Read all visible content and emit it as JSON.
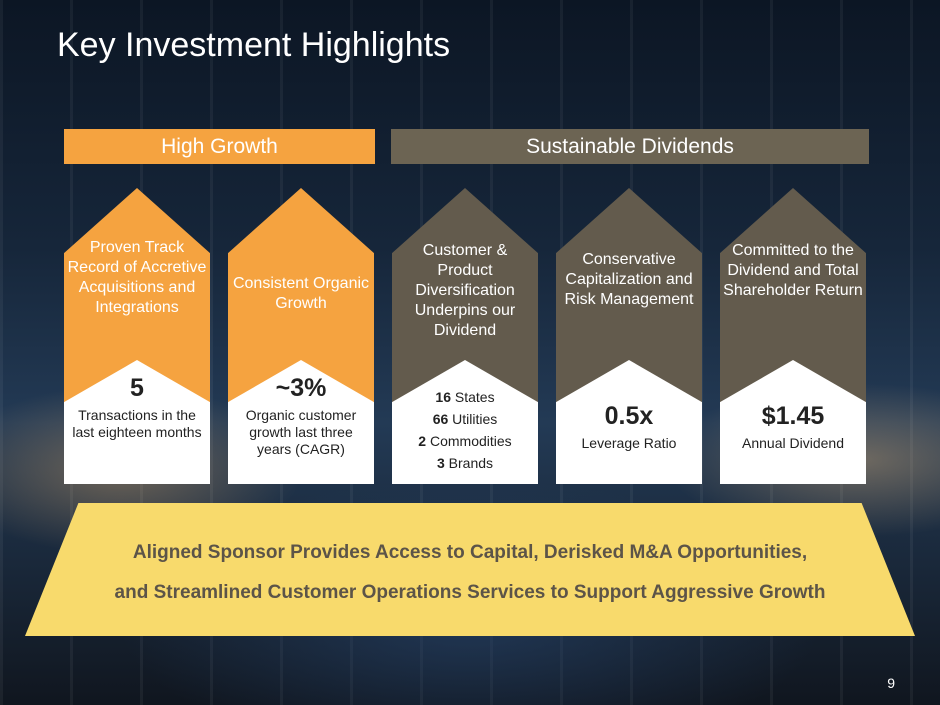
{
  "title": "Key Investment Highlights",
  "banners": {
    "growth": "High Growth",
    "dividends": "Sustainable Dividends"
  },
  "columns": [
    {
      "headline": "Proven Track Record of Accretive Acquisitions and Integrations",
      "stat": "5",
      "stat_label": "Transactions in the last eighteen months",
      "color": "#f5a340"
    },
    {
      "headline": "Consistent Organic Growth",
      "stat": "~3%",
      "stat_label": "Organic customer growth last three years (CAGR)",
      "color": "#f5a340"
    },
    {
      "headline": "Customer & Product Diversification Underpins our Dividend",
      "stats": [
        {
          "value": "16",
          "label": "States"
        },
        {
          "value": "66",
          "label": "Utilities"
        },
        {
          "value": "2",
          "label": "Commodities"
        },
        {
          "value": "3",
          "label": "Brands"
        }
      ],
      "color": "#635b4d"
    },
    {
      "headline": "Conservative Capitalization and Risk Management",
      "stat": "0.5x",
      "stat_label": "Leverage Ratio",
      "color": "#635b4d"
    },
    {
      "headline": "Committed to the Dividend and Total Shareholder Return",
      "stat": "$1.45",
      "stat_label": "Annual Dividend",
      "color": "#635b4d"
    }
  ],
  "footer_box": {
    "line1": "Aligned Sponsor Provides Access to Capital, Derisked M&A Opportunities,",
    "line2": "and Streamlined Customer Operations Services to Support Aggressive Growth"
  },
  "page_number": "9"
}
